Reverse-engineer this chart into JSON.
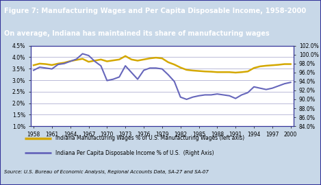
{
  "title": "Figure 7: Manufacturing Wages and Per Capita Disposable Income, 1958-2000",
  "subtitle": "On average, Indiana has maintained its share of manufacturing wages",
  "source": "Source: U.S. Bureau of Economic Analysis, Regional Accounts Data, SA-27 and SA-07",
  "title_bg": "#1B3A8C",
  "subtitle_bg": "#C89000",
  "years": [
    1958,
    1959,
    1960,
    1961,
    1962,
    1963,
    1964,
    1965,
    1966,
    1967,
    1968,
    1969,
    1970,
    1971,
    1972,
    1973,
    1974,
    1975,
    1976,
    1977,
    1978,
    1979,
    1980,
    1981,
    1982,
    1983,
    1984,
    1985,
    1986,
    1987,
    1988,
    1989,
    1990,
    1991,
    1992,
    1993,
    1994,
    1995,
    1996,
    1997,
    1998,
    1999,
    2000
  ],
  "mfg_wages": [
    3.65,
    3.72,
    3.7,
    3.66,
    3.72,
    3.76,
    3.83,
    3.88,
    3.93,
    3.8,
    3.85,
    3.9,
    3.82,
    3.86,
    3.9,
    4.05,
    3.9,
    3.85,
    3.9,
    3.95,
    3.98,
    3.95,
    3.78,
    3.68,
    3.55,
    3.45,
    3.42,
    3.4,
    3.38,
    3.37,
    3.35,
    3.35,
    3.35,
    3.33,
    3.35,
    3.38,
    3.53,
    3.6,
    3.63,
    3.65,
    3.67,
    3.7,
    3.7
  ],
  "per_capita": [
    96.5,
    97.2,
    97.0,
    96.8,
    97.8,
    98.0,
    98.5,
    99.0,
    100.2,
    99.8,
    98.5,
    97.5,
    94.2,
    94.5,
    95.0,
    97.5,
    96.0,
    94.5,
    96.5,
    97.0,
    97.0,
    96.8,
    95.5,
    94.0,
    90.5,
    90.0,
    90.5,
    90.8,
    91.0,
    91.0,
    91.2,
    91.0,
    90.8,
    90.2,
    91.0,
    91.5,
    92.8,
    92.5,
    92.2,
    92.5,
    93.0,
    93.5,
    93.8
  ],
  "mfg_color": "#D4A800",
  "income_color": "#6666BB",
  "left_ylim": [
    1.0,
    4.5
  ],
  "right_ylim": [
    84.0,
    102.0
  ],
  "left_yticks": [
    1.0,
    1.5,
    2.0,
    2.5,
    3.0,
    3.5,
    4.0,
    4.5
  ],
  "right_yticks": [
    84.0,
    86.0,
    88.0,
    90.0,
    92.0,
    94.0,
    96.0,
    98.0,
    100.0,
    102.0
  ],
  "xticks": [
    1958,
    1961,
    1964,
    1967,
    1970,
    1973,
    1976,
    1979,
    1982,
    1985,
    1988,
    1991,
    1994,
    1997,
    2000
  ],
  "legend_mfg": "Indiana Manufacturing Wages % of U.S. Manufacturing Wages (left axis)",
  "legend_income": "Indiana Per Capita Disposable Income % of U.S.  (Right Axis)",
  "outer_bg": "#C8D8E8",
  "inner_bg": "#FFFFFF",
  "grid_color": "#8888BB",
  "border_color": "#333399"
}
